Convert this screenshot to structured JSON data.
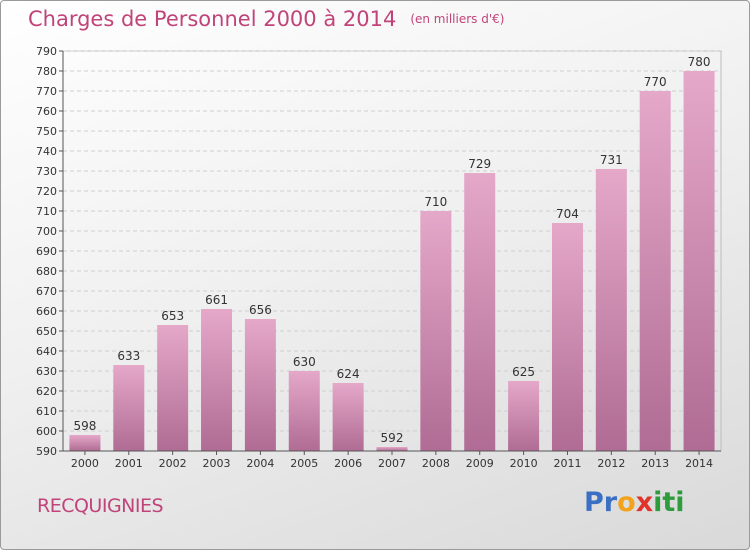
{
  "title": "Charges de Personnel 2000 à 2014",
  "subtitle": "(en milliers d'€)",
  "commune": "RECQUIGNIES",
  "logo": {
    "letters": [
      "P",
      "r",
      "o",
      "x",
      "i",
      "t",
      "i"
    ],
    "colors": [
      "#3a6fc4",
      "#3a6fc4",
      "#f2a31b",
      "#e0332b",
      "#2e9b3d",
      "#2e9b3d",
      "#2e9b3d"
    ]
  },
  "colors": {
    "bar_top": "#e5a8c9",
    "bar_bottom": "#b06c94",
    "title": "#c0447a"
  },
  "chart_data": {
    "type": "bar",
    "categories": [
      "2000",
      "2001",
      "2002",
      "2003",
      "2004",
      "2005",
      "2006",
      "2007",
      "2008",
      "2009",
      "2010",
      "2011",
      "2012",
      "2013",
      "2014"
    ],
    "values": [
      598,
      633,
      653,
      661,
      656,
      630,
      624,
      592,
      710,
      729,
      625,
      704,
      731,
      770,
      780
    ],
    "ylim": [
      590,
      790
    ],
    "ytick_step": 10,
    "grid": true
  }
}
